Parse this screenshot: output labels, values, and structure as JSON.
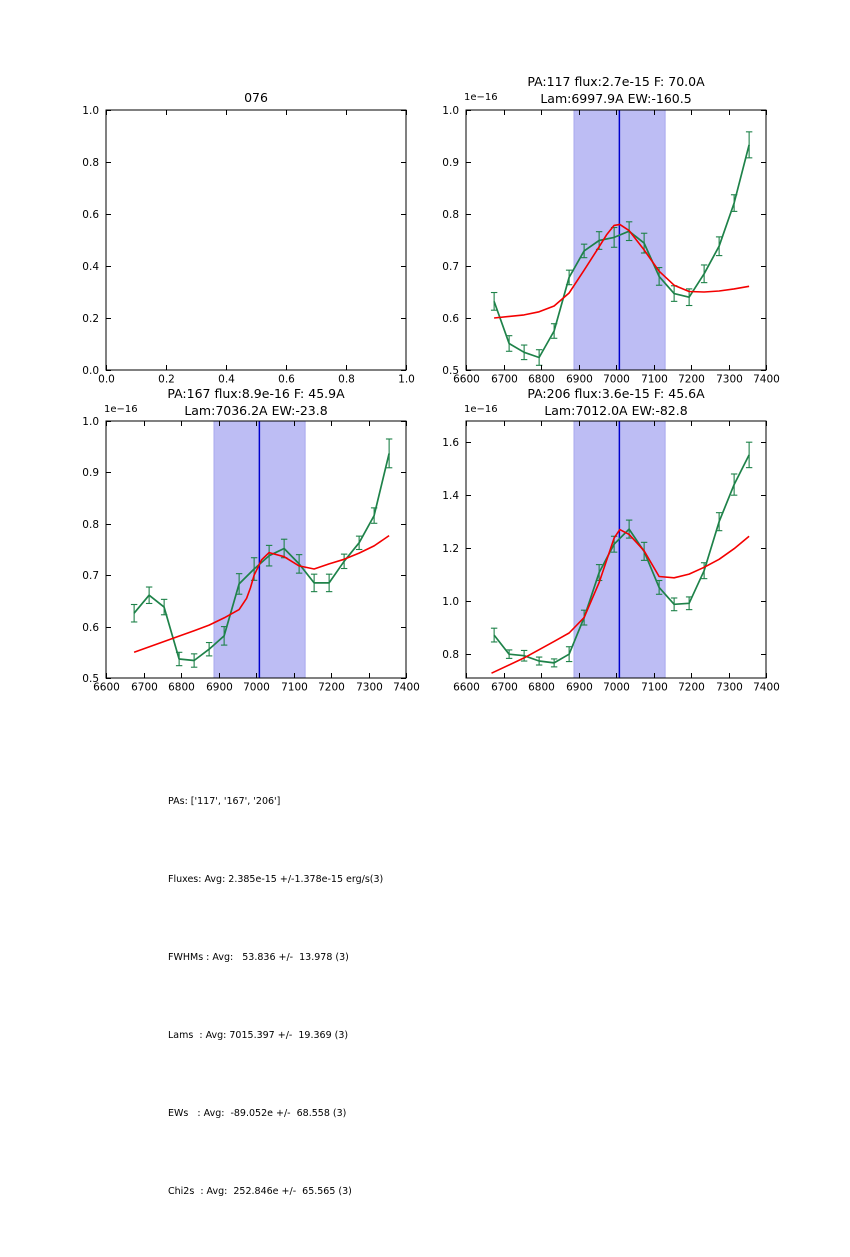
{
  "colors": {
    "background": "#ffffff",
    "axes": "#000000",
    "text": "#000000",
    "data_series_green": "#1e8249",
    "model_fit_red": "#f40000",
    "band_fill": "#bdbdf4",
    "band_edge": "#a9a9ee",
    "center_line_blue": "#0000cc"
  },
  "stats": {
    "lines": [
      "PAs: ['117', '167', '206']",
      "Fluxes: Avg: 2.385e-15 +/-1.378e-15 erg/s(3)",
      "FWHMs : Avg:   53.836 +/-  13.978 (3)",
      "Lams  : Avg: 7015.397 +/-  19.369 (3)",
      "EWs   : Avg:  -89.052e +/-  68.558 (3)",
      "Chi2s  : Avg:  252.846e +/-  65.565 (3)"
    ]
  },
  "chart_data": [
    {
      "type": "empty",
      "title": "076",
      "xlim": [
        0.0,
        1.0
      ],
      "ylim": [
        0.0,
        1.0
      ],
      "xticks": [
        0.0,
        0.2,
        0.4,
        0.6,
        0.8,
        1.0
      ],
      "xtick_labels": [
        "0.0",
        "0.2",
        "0.4",
        "0.6",
        "0.8",
        "1.0"
      ],
      "yticks": [
        0.0,
        0.2,
        0.4,
        0.6,
        0.8,
        1.0
      ],
      "ytick_labels": [
        "0.0",
        "0.2",
        "0.4",
        "0.6",
        "0.8",
        "1.0"
      ],
      "grid": false
    },
    {
      "type": "line",
      "title_line1": "PA:117 flux:2.7e-15 F: 70.0A",
      "title_line2": "Lam:6997.9A EW:-160.5",
      "offset_text": "1e−16",
      "xlim": [
        6600,
        7400
      ],
      "ylim": [
        0.5,
        1.0
      ],
      "xticks": [
        6600,
        6700,
        6800,
        6900,
        7000,
        7100,
        7200,
        7300,
        7400
      ],
      "xtick_labels": [
        "6600",
        "6700",
        "6800",
        "6900",
        "7000",
        "7100",
        "7200",
        "7300",
        "7400"
      ],
      "yticks": [
        0.5,
        0.6,
        0.7,
        0.8,
        0.9,
        1.0
      ],
      "ytick_labels": [
        "0.5",
        "0.6",
        "0.7",
        "0.8",
        "0.9",
        "1.0"
      ],
      "band_x": [
        6888,
        7131
      ],
      "vline_x": 7009,
      "grid": false,
      "series": [
        {
          "name": "spectrum-data",
          "color": "#1e8249",
          "x": [
            6675,
            6715,
            6755,
            6795,
            6835,
            6875,
            6915,
            6955,
            6995,
            7035,
            7075,
            7115,
            7155,
            7195,
            7235,
            7275,
            7315,
            7355
          ],
          "y": [
            0.632,
            0.551,
            0.534,
            0.524,
            0.575,
            0.678,
            0.729,
            0.749,
            0.755,
            0.767,
            0.744,
            0.68,
            0.647,
            0.64,
            0.685,
            0.738,
            0.821,
            0.933
          ],
          "yerr": [
            0.017,
            0.015,
            0.014,
            0.015,
            0.014,
            0.014,
            0.013,
            0.017,
            0.019,
            0.018,
            0.019,
            0.017,
            0.015,
            0.016,
            0.017,
            0.018,
            0.016,
            0.025
          ]
        },
        {
          "name": "model-fit",
          "color": "#f40000",
          "x": [
            6675,
            6755,
            6795,
            6835,
            6875,
            6915,
            6955,
            6975,
            6995,
            7010,
            7035,
            7075,
            7115,
            7155,
            7195,
            7235,
            7275,
            7315,
            7355
          ],
          "y": [
            0.6,
            0.606,
            0.612,
            0.623,
            0.648,
            0.692,
            0.737,
            0.76,
            0.778,
            0.78,
            0.768,
            0.731,
            0.69,
            0.663,
            0.651,
            0.65,
            0.652,
            0.656,
            0.661
          ]
        }
      ]
    },
    {
      "type": "line",
      "title_line1": "PA:167 flux:8.9e-16 F: 45.9A",
      "title_line2": "Lam:7036.2A EW:-23.8",
      "offset_text": "1e−16",
      "xlim": [
        6600,
        7400
      ],
      "ylim": [
        0.5,
        1.0
      ],
      "xticks": [
        6600,
        6700,
        6800,
        6900,
        7000,
        7100,
        7200,
        7300,
        7400
      ],
      "xtick_labels": [
        "6600",
        "6700",
        "6800",
        "6900",
        "7000",
        "7100",
        "7200",
        "7300",
        "7400"
      ],
      "yticks": [
        0.5,
        0.6,
        0.7,
        0.8,
        0.9,
        1.0
      ],
      "ytick_labels": [
        "0.5",
        "0.6",
        "0.7",
        "0.8",
        "0.9",
        "1.0"
      ],
      "band_x": [
        6888,
        7131
      ],
      "vline_x": 7009,
      "grid": false,
      "series": [
        {
          "name": "spectrum-data",
          "color": "#1e8249",
          "x": [
            6675,
            6715,
            6755,
            6795,
            6835,
            6875,
            6915,
            6955,
            6995,
            7035,
            7075,
            7115,
            7155,
            7195,
            7235,
            7275,
            7315,
            7355
          ],
          "y": [
            0.626,
            0.661,
            0.638,
            0.537,
            0.534,
            0.556,
            0.582,
            0.683,
            0.712,
            0.738,
            0.752,
            0.722,
            0.685,
            0.685,
            0.727,
            0.763,
            0.816,
            0.937
          ],
          "yerr": [
            0.017,
            0.016,
            0.015,
            0.013,
            0.013,
            0.013,
            0.018,
            0.02,
            0.022,
            0.02,
            0.018,
            0.018,
            0.017,
            0.017,
            0.014,
            0.013,
            0.015,
            0.028
          ]
        },
        {
          "name": "model-fit",
          "color": "#f40000",
          "x": [
            6675,
            6755,
            6835,
            6875,
            6915,
            6955,
            6975,
            6985,
            6995,
            7015,
            7035,
            7075,
            7115,
            7155,
            7195,
            7235,
            7275,
            7315,
            7355
          ],
          "y": [
            0.55,
            0.571,
            0.592,
            0.603,
            0.617,
            0.633,
            0.655,
            0.675,
            0.7,
            0.73,
            0.744,
            0.736,
            0.718,
            0.712,
            0.722,
            0.731,
            0.743,
            0.757,
            0.777
          ]
        }
      ]
    },
    {
      "type": "line",
      "title_line1": "PA:206 flux:3.6e-15 F: 45.6A",
      "title_line2": "Lam:7012.0A EW:-82.8",
      "offset_text": "1e−16",
      "xlim": [
        6600,
        7400
      ],
      "ylim": [
        0.71,
        1.68
      ],
      "xticks": [
        6600,
        6700,
        6800,
        6900,
        7000,
        7100,
        7200,
        7300,
        7400
      ],
      "xtick_labels": [
        "6600",
        "6700",
        "6800",
        "6900",
        "7000",
        "7100",
        "7200",
        "7300",
        "7400"
      ],
      "yticks": [
        0.8,
        1.0,
        1.2,
        1.4,
        1.6
      ],
      "ytick_labels": [
        "0.8",
        "1.0",
        "1.2",
        "1.4",
        "1.6"
      ],
      "band_x": [
        6888,
        7131
      ],
      "vline_x": 7009,
      "grid": false,
      "series": [
        {
          "name": "spectrum-data",
          "color": "#1e8249",
          "x": [
            6675,
            6715,
            6755,
            6795,
            6835,
            6875,
            6915,
            6955,
            6995,
            7035,
            7075,
            7115,
            7155,
            7195,
            7235,
            7275,
            7315,
            7355
          ],
          "y": [
            0.872,
            0.8,
            0.794,
            0.774,
            0.767,
            0.8,
            0.938,
            1.108,
            1.215,
            1.272,
            1.188,
            1.052,
            0.988,
            0.992,
            1.115,
            1.3,
            1.44,
            1.552
          ],
          "yerr": [
            0.026,
            0.016,
            0.02,
            0.015,
            0.015,
            0.028,
            0.028,
            0.03,
            0.03,
            0.034,
            0.034,
            0.026,
            0.024,
            0.024,
            0.03,
            0.034,
            0.04,
            0.048
          ]
        },
        {
          "name": "model-fit",
          "color": "#f40000",
          "x": [
            6668,
            6755,
            6835,
            6875,
            6915,
            6955,
            6995,
            7010,
            7035,
            7075,
            7115,
            7155,
            7195,
            7235,
            7275,
            7315,
            7355
          ],
          "y": [
            0.728,
            0.786,
            0.848,
            0.88,
            0.938,
            1.07,
            1.238,
            1.27,
            1.252,
            1.19,
            1.093,
            1.088,
            1.102,
            1.128,
            1.158,
            1.198,
            1.245
          ]
        }
      ]
    }
  ]
}
